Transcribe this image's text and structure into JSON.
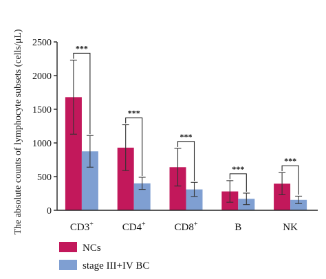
{
  "chart_data": {
    "type": "bar",
    "ylabel": "The absolute counts of lymphocyte subsets (cells/μL)",
    "ylim": [
      0,
      2500
    ],
    "yticks": [
      "0",
      "500",
      "1000",
      "1500",
      "2000",
      "2500"
    ],
    "categories": [
      {
        "base": "CD3",
        "sup": "+"
      },
      {
        "base": "CD4",
        "sup": "+"
      },
      {
        "base": "CD8",
        "sup": "+"
      },
      {
        "base": "B",
        "sup": ""
      },
      {
        "base": "NK",
        "sup": ""
      }
    ],
    "series": [
      {
        "name": "NCs",
        "color": "#c2185b",
        "values": [
          1680,
          930,
          640,
          280,
          395
        ],
        "errors": [
          550,
          340,
          280,
          160,
          165
        ]
      },
      {
        "name": "stage III+IV BC",
        "color": "#7f9fd2",
        "values": [
          875,
          400,
          310,
          170,
          155
        ],
        "errors": [
          235,
          90,
          105,
          85,
          55
        ]
      }
    ],
    "significance": [
      "***",
      "***",
      "***",
      "***",
      "***"
    ],
    "legend_placement": "bottom-left",
    "grid": false
  }
}
